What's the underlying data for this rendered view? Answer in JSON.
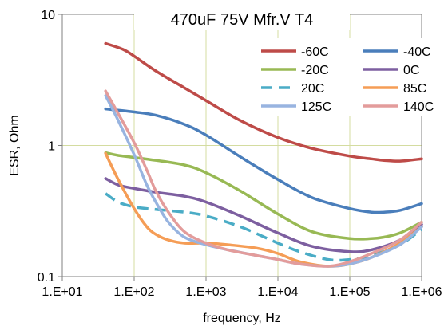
{
  "chart_data": {
    "type": "line",
    "title": "470uF 75V Mfr.V T4",
    "xlabel": "frequency, Hz",
    "ylabel": "ESR, Ohm",
    "x_scale": "log",
    "y_scale": "log",
    "xlim": [
      10,
      1000000
    ],
    "ylim": [
      0.1,
      10
    ],
    "x_ticks": [
      {
        "value": 10,
        "label": "1.E+01"
      },
      {
        "value": 100,
        "label": "1.E+02"
      },
      {
        "value": 1000,
        "label": "1.E+03"
      },
      {
        "value": 10000,
        "label": "1.E+04"
      },
      {
        "value": 100000,
        "label": "1.E+05"
      },
      {
        "value": 1000000,
        "label": "1.E+06"
      }
    ],
    "y_ticks": [
      {
        "value": 0.1,
        "label": "0.1"
      },
      {
        "value": 1,
        "label": "1"
      },
      {
        "value": 10,
        "label": "10"
      }
    ],
    "grid": true,
    "legend_position": "top-right",
    "series": [
      {
        "name": "-60C",
        "color": "#be4b48",
        "dash": false,
        "x": [
          40,
          70,
          100,
          200,
          500,
          1000,
          3000,
          10000,
          30000,
          100000,
          200000,
          300000,
          500000,
          1000000
        ],
        "y": [
          6.0,
          5.4,
          4.8,
          3.7,
          2.75,
          2.2,
          1.55,
          1.15,
          0.95,
          0.83,
          0.79,
          0.77,
          0.76,
          0.79
        ]
      },
      {
        "name": "-40C",
        "color": "#4a7ebb",
        "dash": false,
        "x": [
          40,
          100,
          200,
          500,
          1000,
          3000,
          10000,
          30000,
          100000,
          200000,
          300000,
          500000,
          1000000
        ],
        "y": [
          1.9,
          1.8,
          1.7,
          1.45,
          1.2,
          0.82,
          0.55,
          0.4,
          0.33,
          0.31,
          0.31,
          0.32,
          0.36
        ]
      },
      {
        "name": "-20C",
        "color": "#98b954",
        "dash": false,
        "x": [
          40,
          60,
          100,
          200,
          500,
          1000,
          3000,
          10000,
          30000,
          100000,
          200000,
          300000,
          500000,
          1000000
        ],
        "y": [
          0.88,
          0.84,
          0.81,
          0.77,
          0.71,
          0.62,
          0.45,
          0.3,
          0.22,
          0.195,
          0.195,
          0.2,
          0.215,
          0.26
        ]
      },
      {
        "name": "0C",
        "color": "#7d5fa0",
        "dash": false,
        "x": [
          40,
          60,
          100,
          200,
          500,
          1000,
          3000,
          10000,
          30000,
          100000,
          200000,
          500000,
          1000000
        ],
        "y": [
          0.56,
          0.5,
          0.47,
          0.44,
          0.41,
          0.37,
          0.29,
          0.215,
          0.17,
          0.155,
          0.16,
          0.19,
          0.25
        ]
      },
      {
        "name": "20C",
        "color": "#4aacc6",
        "dash": true,
        "x": [
          40,
          60,
          100,
          200,
          500,
          1000,
          3000,
          10000,
          20000,
          50000,
          100000,
          200000,
          500000,
          1000000
        ],
        "y": [
          0.43,
          0.37,
          0.34,
          0.325,
          0.31,
          0.29,
          0.24,
          0.18,
          0.155,
          0.135,
          0.135,
          0.145,
          0.175,
          0.23
        ]
      },
      {
        "name": "85C",
        "color": "#f59d56",
        "dash": false,
        "x": [
          40,
          60,
          100,
          150,
          200,
          300,
          500,
          1000,
          2000,
          5000,
          10000,
          20000,
          50000,
          100000,
          200000,
          500000,
          1000000
        ],
        "y": [
          0.87,
          0.55,
          0.33,
          0.24,
          0.21,
          0.19,
          0.18,
          0.18,
          0.175,
          0.165,
          0.15,
          0.13,
          0.12,
          0.125,
          0.14,
          0.18,
          0.24
        ]
      },
      {
        "name": "125C",
        "color": "#98b4e0",
        "dash": false,
        "x": [
          40,
          60,
          100,
          150,
          200,
          300,
          500,
          1000,
          2000,
          5000,
          10000,
          20000,
          50000,
          100000,
          200000,
          500000,
          1000000
        ],
        "y": [
          2.4,
          1.55,
          0.85,
          0.5,
          0.37,
          0.26,
          0.2,
          0.175,
          0.16,
          0.145,
          0.135,
          0.125,
          0.12,
          0.125,
          0.14,
          0.175,
          0.24
        ]
      },
      {
        "name": "140C",
        "color": "#e39c9b",
        "dash": false,
        "x": [
          40,
          60,
          100,
          150,
          200,
          300,
          500,
          1000,
          2000,
          5000,
          10000,
          20000,
          50000,
          100000,
          200000,
          500000,
          1000000
        ],
        "y": [
          2.6,
          1.75,
          1.05,
          0.65,
          0.45,
          0.31,
          0.22,
          0.18,
          0.16,
          0.145,
          0.135,
          0.125,
          0.12,
          0.13,
          0.15,
          0.19,
          0.26
        ]
      }
    ]
  }
}
